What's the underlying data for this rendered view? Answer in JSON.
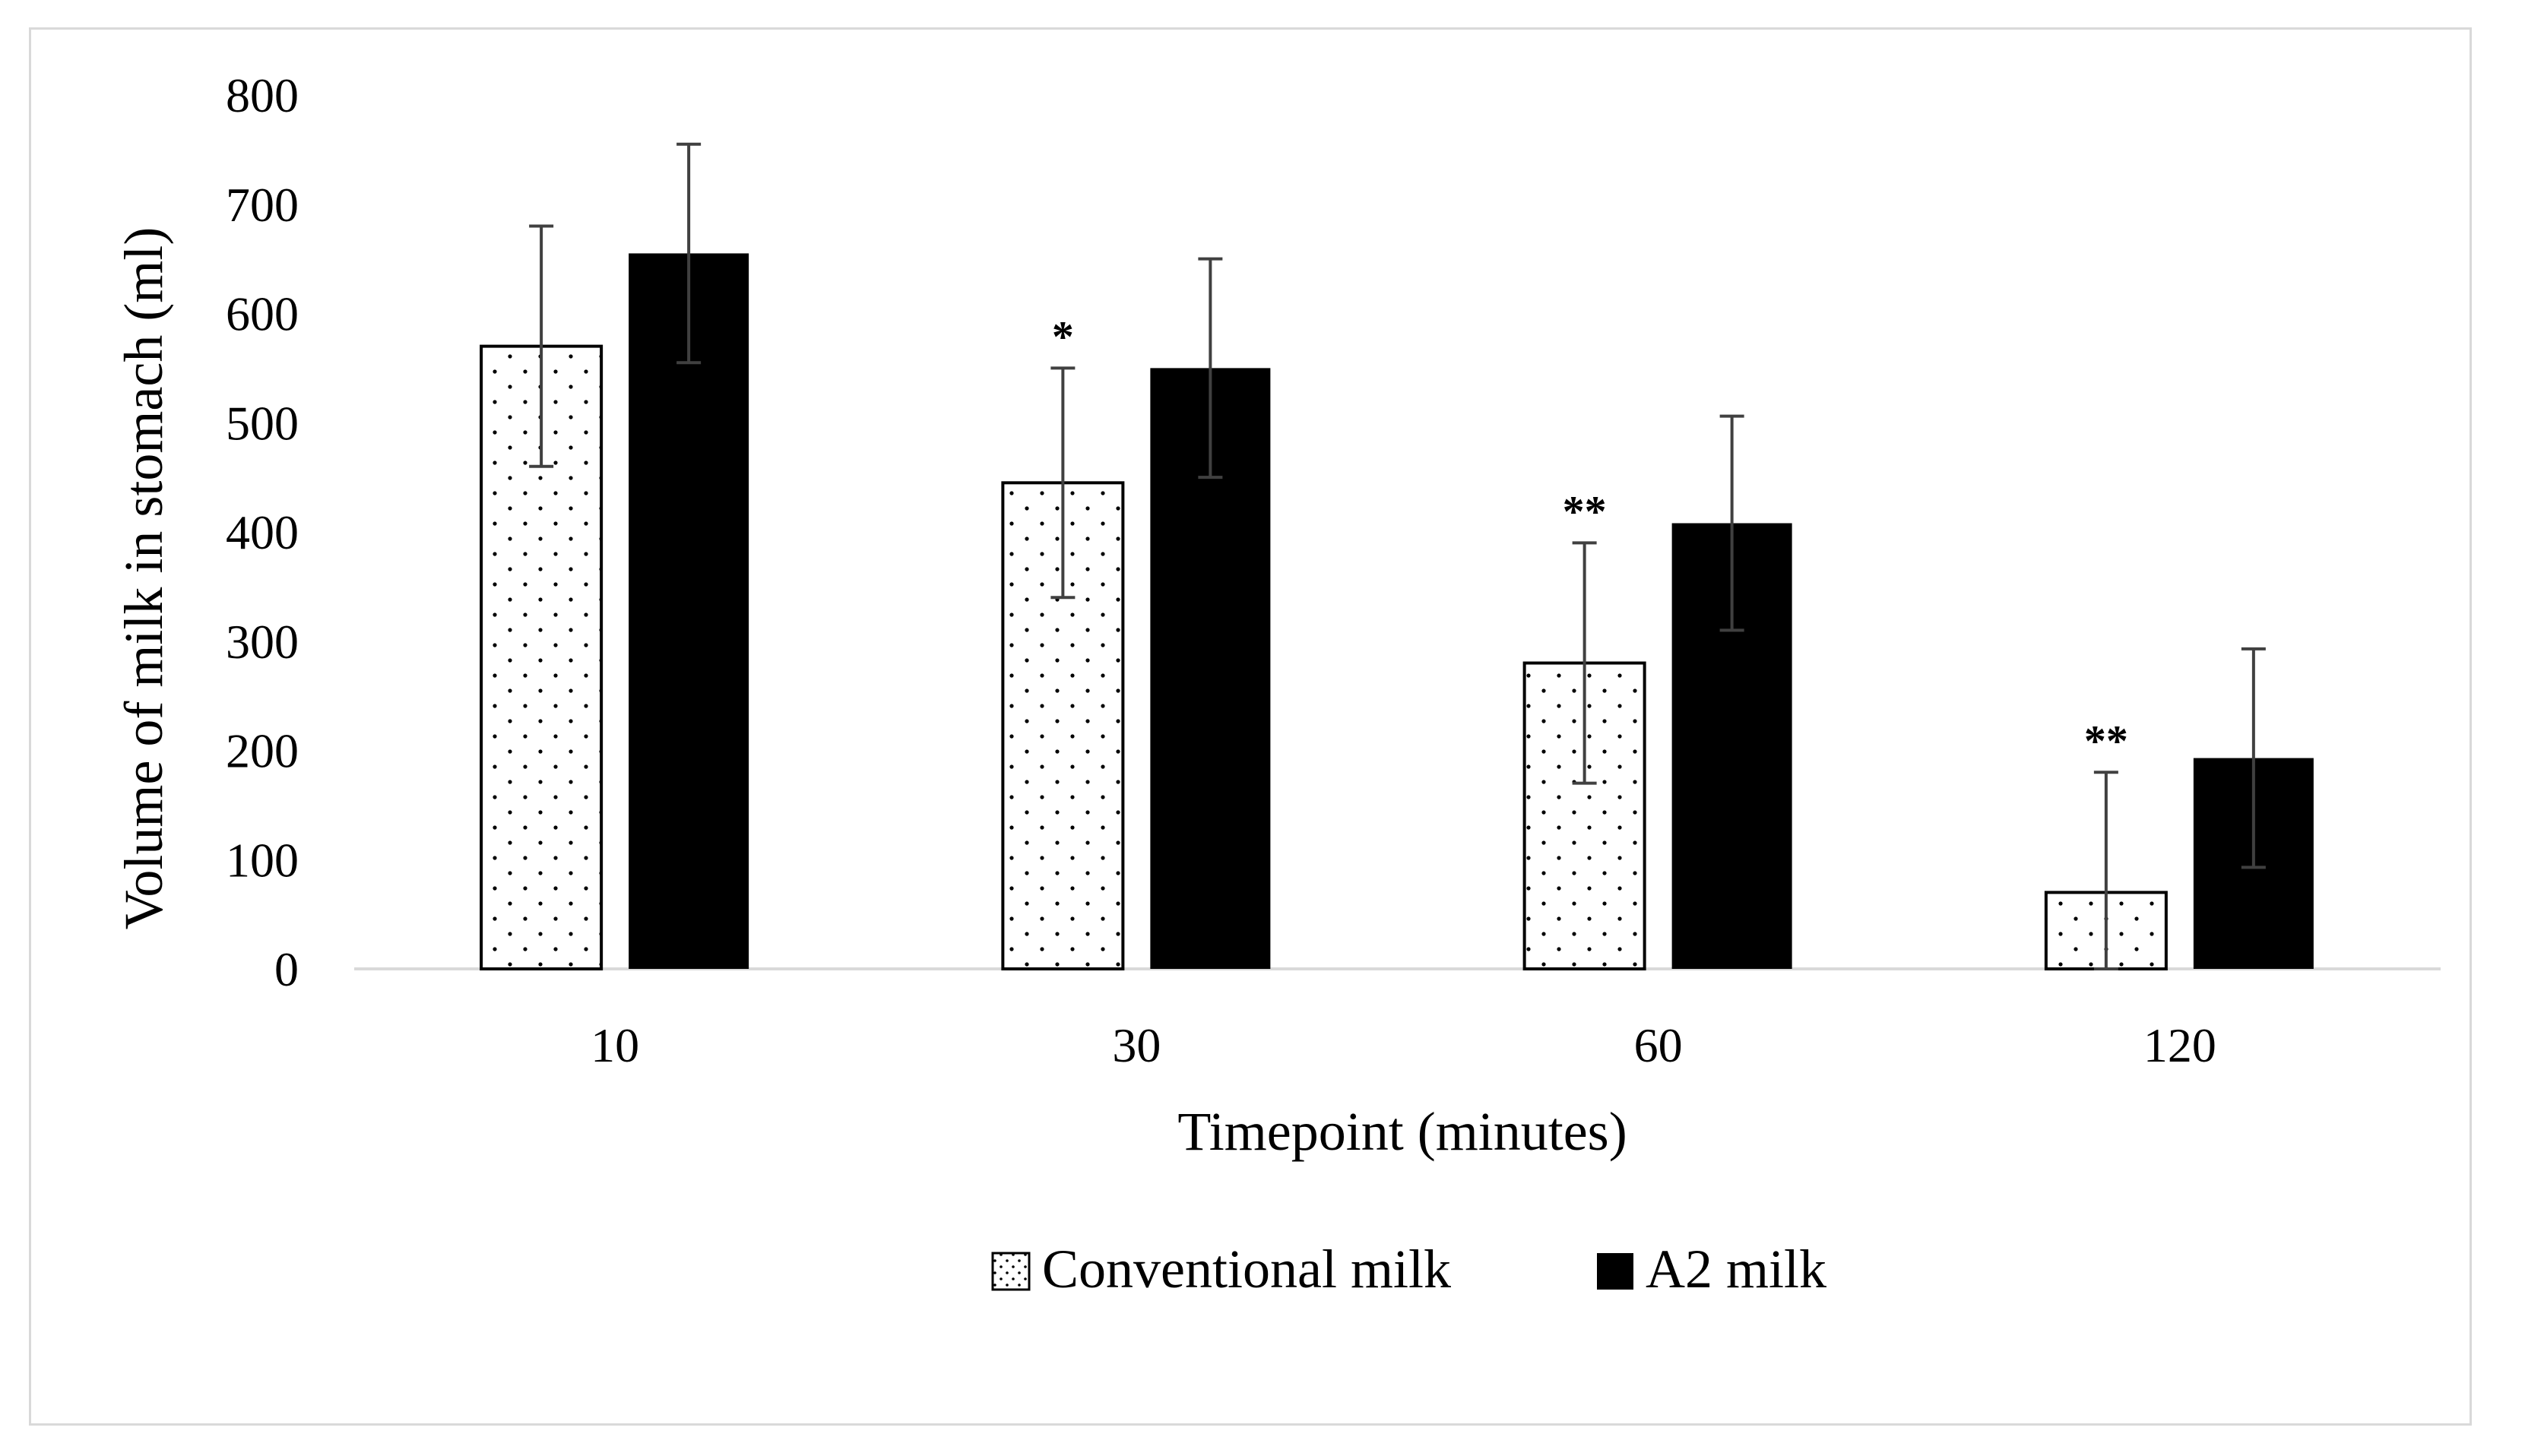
{
  "chart_data": {
    "type": "bar",
    "title": "",
    "xlabel": "Timepoint (minutes)",
    "ylabel": "Volume of milk in stomach (ml)",
    "categories": [
      "10",
      "30",
      "60",
      "120"
    ],
    "ylim": [
      0,
      800
    ],
    "yticks": [
      0,
      100,
      200,
      300,
      400,
      500,
      600,
      700,
      800
    ],
    "grid": false,
    "legend_position": "bottom",
    "series": [
      {
        "name": "Conventional milk",
        "pattern": "dotted",
        "color": "#ffffff",
        "values": [
          570,
          445,
          280,
          70
        ],
        "errors": [
          110,
          105,
          110,
          110
        ],
        "significance": [
          "",
          "*",
          "**",
          "**"
        ]
      },
      {
        "name": "A2 milk",
        "pattern": "solid",
        "color": "#000000",
        "values": [
          655,
          550,
          408,
          193
        ],
        "errors": [
          100,
          100,
          98,
          100
        ],
        "significance": [
          "",
          "",
          "",
          ""
        ]
      }
    ]
  },
  "colors": {
    "axis": "#d9d9d9",
    "error_bar": "#404040",
    "border": "#d9d9d9"
  }
}
